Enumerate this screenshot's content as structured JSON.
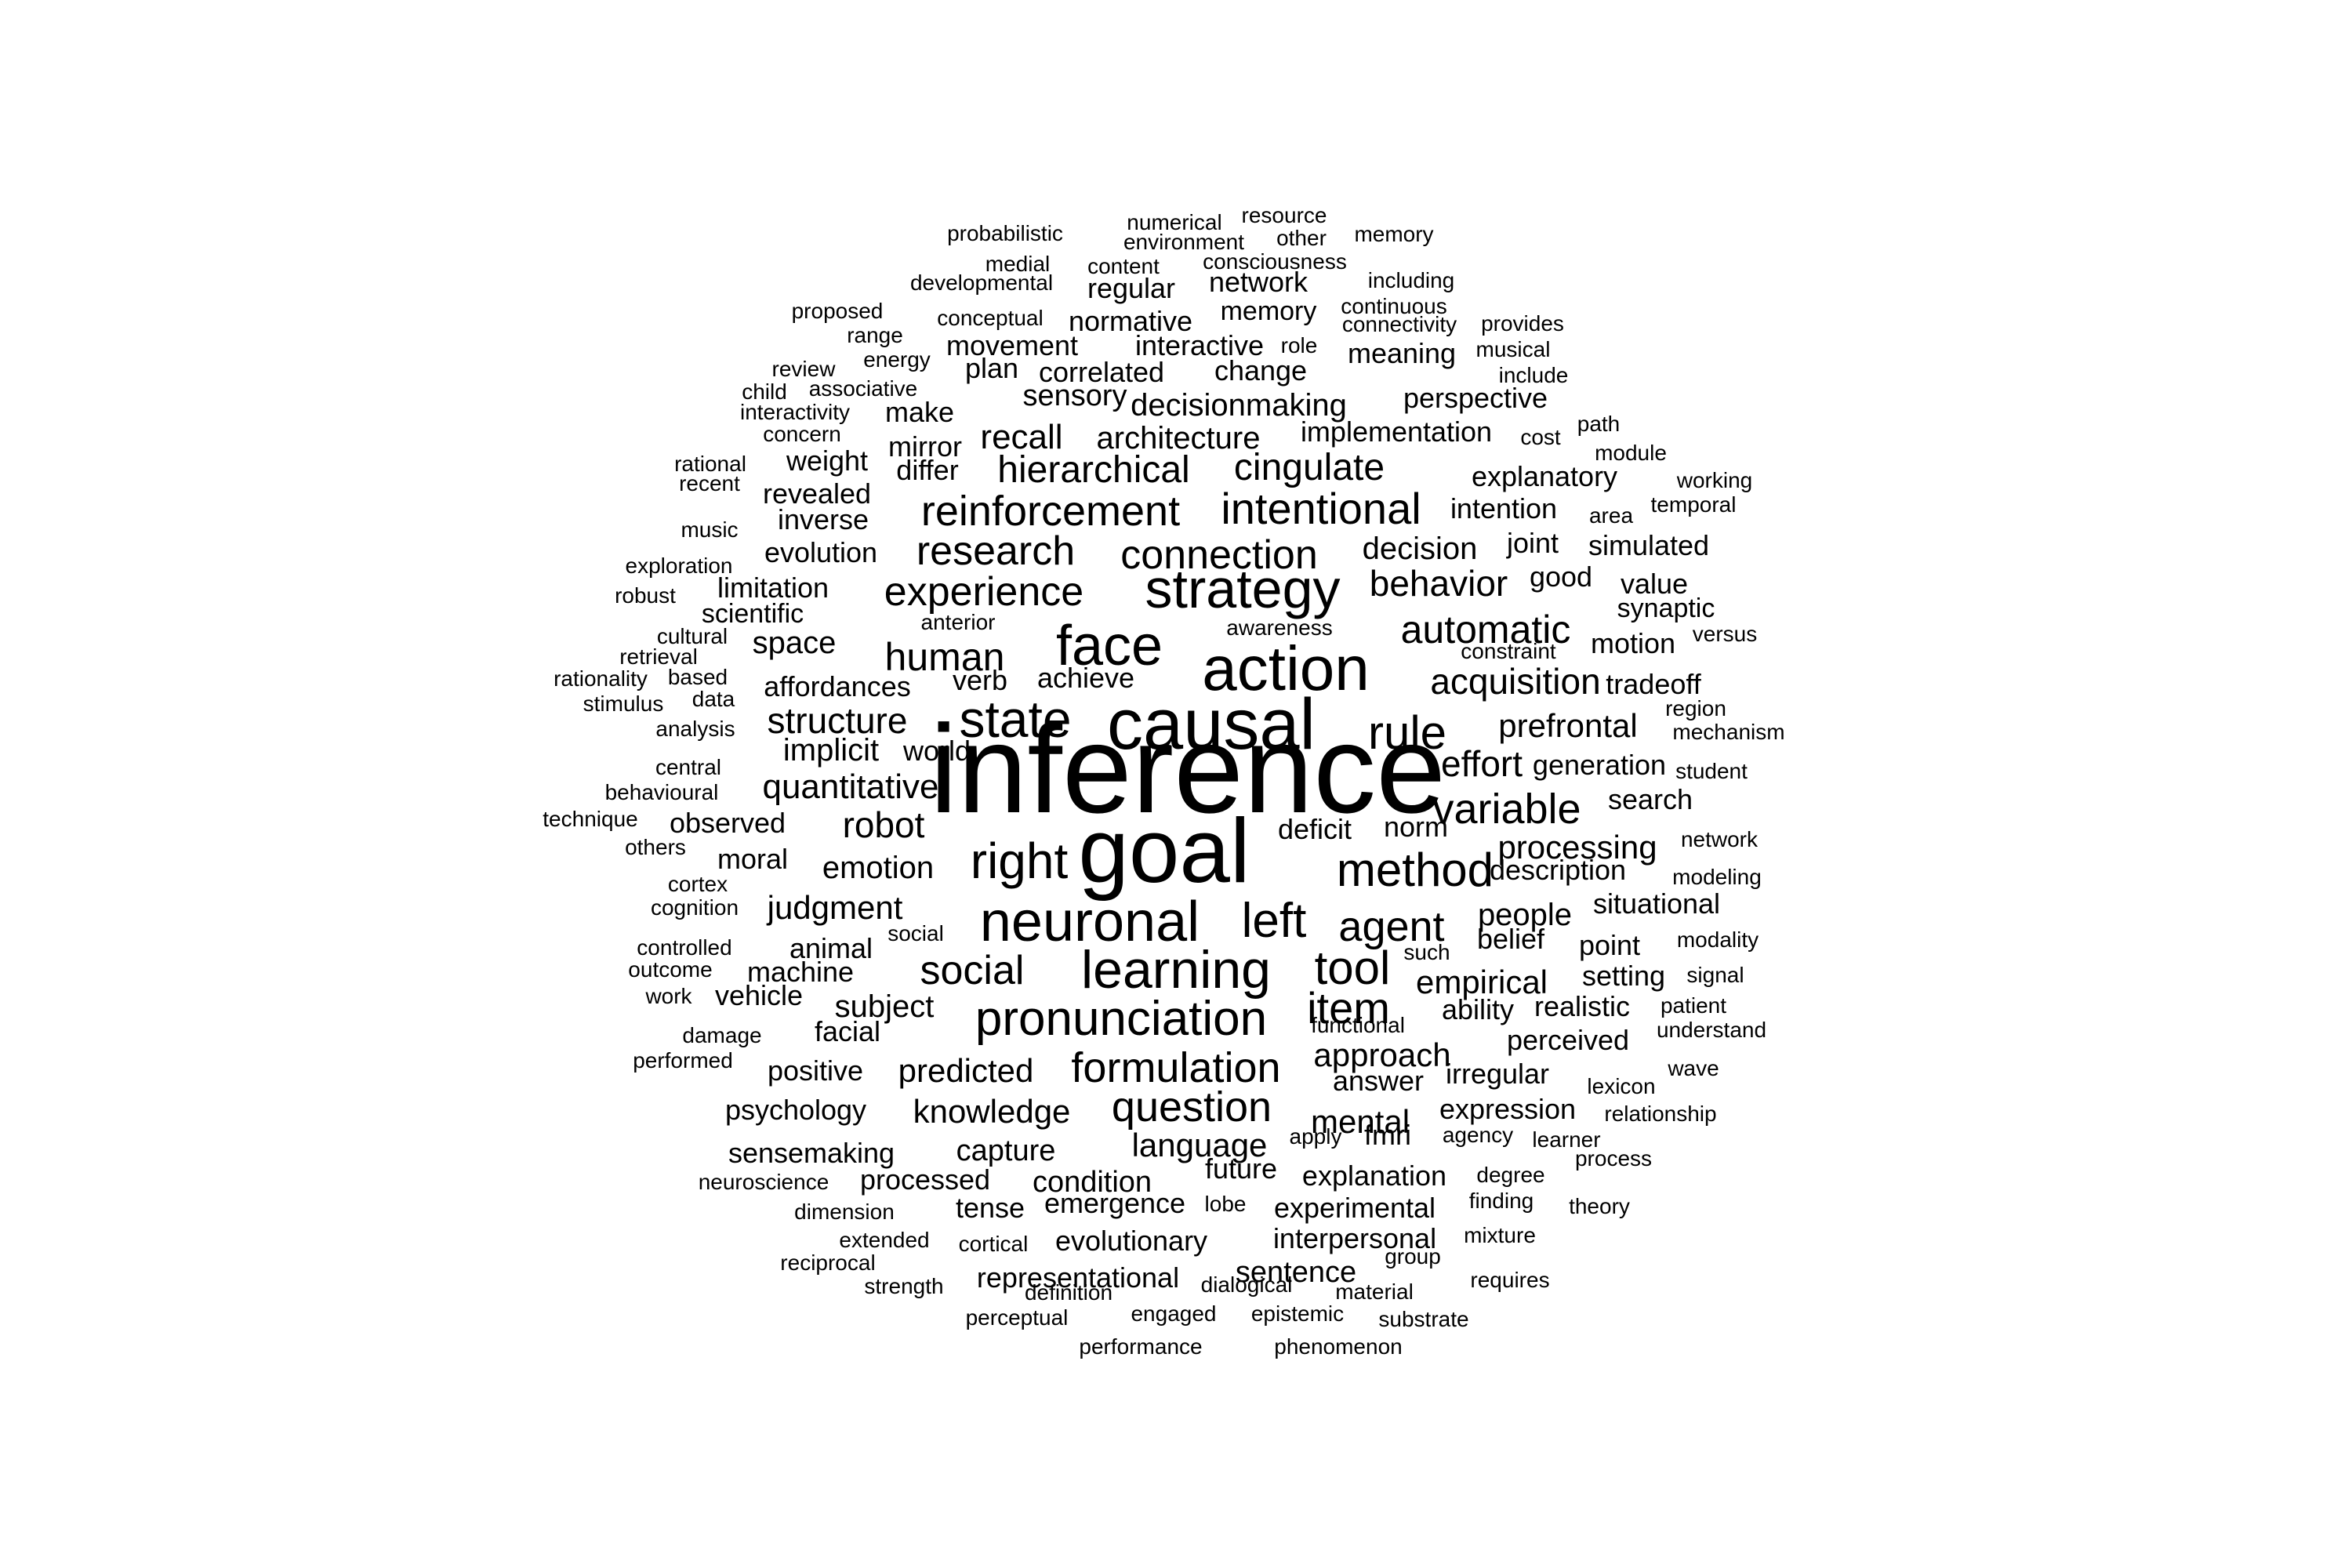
{
  "wordcloud": {
    "color": "#000000",
    "words": [
      "inference",
      "goal",
      "causal",
      "action",
      "neuronal",
      "face",
      "strategy",
      "learning",
      "pronunciation",
      "state",
      "method",
      "left",
      "right",
      "rule",
      "tool",
      "agent",
      "formulation",
      "reinforcement",
      "intentional",
      "question",
      "connection",
      "research",
      "experience",
      "item",
      "human",
      "social",
      "variable",
      "automatic",
      "behavior",
      "acquisition",
      "effort",
      "hierarchical",
      "cingulate",
      "quantitative",
      "prefrontal",
      "structure",
      "processing",
      "approach",
      "language",
      "empirical",
      "mental",
      "knowledge",
      "robot",
      "decisionmaking",
      "architecture",
      "predicted",
      "emotion",
      "judgment",
      "subject",
      "people",
      "recall",
      "implicit",
      "space",
      "decision",
      "explanation",
      "experimental",
      "evolutionary",
      "representational",
      "sentence",
      "interpersonal",
      "condition",
      "emergence",
      "capture",
      "sensemaking",
      "psychology",
      "positive",
      "facial",
      "vehicle",
      "machine",
      "animal",
      "moral",
      "observed",
      "affordances",
      "verb",
      "achieve",
      "evolution",
      "inverse",
      "revealed",
      "weight",
      "differ",
      "mirror",
      "make",
      "plan",
      "correlated",
      "change",
      "sensory",
      "meaning",
      "movement",
      "interactive",
      "normative",
      "memory",
      "network",
      "regular",
      "perspective",
      "implementation",
      "explanatory",
      "intention",
      "joint",
      "simulated",
      "good",
      "value",
      "synaptic",
      "motion",
      "tradeoff",
      "generation",
      "search",
      "deficit",
      "norm",
      "description",
      "situational",
      "belief",
      "point",
      "setting",
      "realistic",
      "ability",
      "perceived",
      "irregular",
      "answer",
      "expression",
      "fmri",
      "future",
      "tense",
      "processed",
      "limitation",
      "scientific",
      "world",
      "mental_skip",
      "probabilistic",
      "numerical",
      "resource",
      "environment",
      "other",
      "memory_small",
      "medial",
      "content",
      "consciousness",
      "developmental",
      "including",
      "continuous",
      "connectivity",
      "provides",
      "proposed",
      "conceptual",
      "range",
      "energy",
      "review",
      "musical",
      "role",
      "child",
      "associative",
      "include",
      "interactivity",
      "concern",
      "cost",
      "path",
      "module",
      "rational",
      "recent",
      "working",
      "temporal",
      "area",
      "music",
      "exploration",
      "robust",
      "anterior",
      "awareness",
      "cultural",
      "retrieval",
      "constraint",
      "versus",
      "rationality",
      "based",
      "stimulus",
      "data",
      "region",
      "mechanism",
      "analysis",
      "central",
      "behavioural",
      "student",
      "technique",
      "others",
      "network_small",
      "cortex",
      "modeling",
      "cognition",
      "social_small",
      "controlled",
      "such",
      "modality",
      "outcome",
      "work",
      "signal",
      "patient",
      "functional",
      "understand",
      "damage",
      "performed",
      "lexicon",
      "wave",
      "relationship",
      "agency",
      "apply",
      "learner",
      "degree",
      "process",
      "neuroscience",
      "dimension",
      "lobe",
      "finding",
      "theory",
      "extended",
      "cortical",
      "mixture",
      "reciprocal",
      "group",
      "strength",
      "definition",
      "dialogical",
      "material",
      "requires",
      "perceptual",
      "engaged",
      "epistemic",
      "substrate",
      "performance",
      "phenomenon"
    ],
    "labels": {
      "inference": "inference",
      "goal": "goal",
      "causal": "causal",
      "action": "action",
      "neuronal": "neuronal",
      "face": "face",
      "strategy": "strategy",
      "learning": "learning",
      "pronunciation": "pronunciation",
      "state": "state",
      "method": "method",
      "left": "left",
      "right": "right",
      "rule": "rule",
      "tool": "tool",
      "agent": "agent",
      "formulation": "formulation",
      "reinforcement": "reinforcement",
      "intentional": "intentional",
      "question": "question",
      "connection": "connection",
      "research": "research",
      "experience": "experience",
      "item": "item",
      "human": "human",
      "social": "social",
      "variable": "variable",
      "automatic": "automatic",
      "behavior": "behavior",
      "acquisition": "acquisition",
      "effort": "effort",
      "hierarchical": "hierarchical",
      "cingulate": "cingulate",
      "quantitative": "quantitative",
      "prefrontal": "prefrontal",
      "structure": "structure",
      "processing": "processing",
      "approach": "approach",
      "language": "language",
      "empirical": "empirical",
      "mental": "mental",
      "knowledge": "knowledge",
      "robot": "robot",
      "decisionmaking": "decisionmaking",
      "architecture": "architecture",
      "predicted": "predicted",
      "emotion": "emotion",
      "judgment": "judgment",
      "subject": "subject",
      "people": "people",
      "recall": "recall",
      "implicit": "implicit",
      "space": "space",
      "decision": "decision",
      "explanation": "explanation",
      "experimental": "experimental",
      "evolutionary": "evolutionary",
      "representational": "representational",
      "sentence": "sentence",
      "interpersonal": "interpersonal",
      "condition": "condition",
      "emergence": "emergence",
      "capture": "capture",
      "sensemaking": "sensemaking",
      "psychology": "psychology",
      "positive": "positive",
      "facial": "facial",
      "vehicle": "vehicle",
      "machine": "machine",
      "animal": "animal",
      "moral": "moral",
      "observed": "observed",
      "affordances": "affordances",
      "verb": "verb",
      "achieve": "achieve",
      "evolution": "evolution",
      "inverse": "inverse",
      "revealed": "revealed",
      "weight": "weight",
      "differ": "differ",
      "mirror": "mirror",
      "make": "make",
      "plan": "plan",
      "correlated": "correlated",
      "change": "change",
      "sensory": "sensory",
      "meaning": "meaning",
      "movement": "movement",
      "interactive": "interactive",
      "normative": "normative",
      "memory": "memory",
      "network": "network",
      "regular": "regular",
      "perspective": "perspective",
      "implementation": "implementation",
      "explanatory": "explanatory",
      "intention": "intention",
      "joint": "joint",
      "simulated": "simulated",
      "good": "good",
      "value": "value",
      "synaptic": "synaptic",
      "motion": "motion",
      "tradeoff": "tradeoff",
      "generation": "generation",
      "search": "search",
      "deficit": "deficit",
      "norm": "norm",
      "description": "description",
      "situational": "situational",
      "belief": "belief",
      "point": "point",
      "setting": "setting",
      "realistic": "realistic",
      "ability": "ability",
      "perceived": "perceived",
      "irregular": "irregular",
      "answer": "answer",
      "expression": "expression",
      "fmri": "fmri",
      "future": "future",
      "tense": "tense",
      "processed": "processed",
      "limitation": "limitation",
      "scientific": "scientific",
      "world": "world",
      "probabilistic": "probabilistic",
      "numerical": "numerical",
      "resource": "resource",
      "environment": "environment",
      "other": "other",
      "memory_small": "memory",
      "medial": "medial",
      "content": "content",
      "consciousness": "consciousness",
      "developmental": "developmental",
      "including": "including",
      "continuous": "continuous",
      "connectivity": "connectivity",
      "provides": "provides",
      "proposed": "proposed",
      "conceptual": "conceptual",
      "range": "range",
      "energy": "energy",
      "review": "review",
      "musical": "musical",
      "role": "role",
      "child": "child",
      "associative": "associative",
      "include": "include",
      "interactivity": "interactivity",
      "concern": "concern",
      "cost": "cost",
      "path": "path",
      "module": "module",
      "rational": "rational",
      "recent": "recent",
      "working": "working",
      "temporal": "temporal",
      "area": "area",
      "music": "music",
      "exploration": "exploration",
      "robust": "robust",
      "anterior": "anterior",
      "awareness": "awareness",
      "cultural": "cultural",
      "retrieval": "retrieval",
      "constraint": "constraint",
      "versus": "versus",
      "rationality": "rationality",
      "based": "based",
      "stimulus": "stimulus",
      "data": "data",
      "region": "region",
      "mechanism": "mechanism",
      "analysis": "analysis",
      "central": "central",
      "behavioural": "behavioural",
      "student": "student",
      "technique": "technique",
      "others": "others",
      "network_small": "network",
      "cortex": "cortex",
      "modeling": "modeling",
      "cognition": "cognition",
      "social_small": "social",
      "controlled": "controlled",
      "such": "such",
      "modality": "modality",
      "outcome": "outcome",
      "work": "work",
      "signal": "signal",
      "patient": "patient",
      "functional": "functional",
      "understand": "understand",
      "damage": "damage",
      "performed": "performed",
      "lexicon": "lexicon",
      "wave": "wave",
      "relationship": "relationship",
      "agency": "agency",
      "apply": "apply",
      "learner": "learner",
      "degree": "degree",
      "process": "process",
      "neuroscience": "neuroscience",
      "dimension": "dimension",
      "lobe": "lobe",
      "finding": "finding",
      "theory": "theory",
      "extended": "extended",
      "cortical": "cortical",
      "mixture": "mixture",
      "reciprocal": "reciprocal",
      "group": "group",
      "strength": "strength",
      "definition": "definition",
      "dialogical": "dialogical",
      "material": "material",
      "requires": "requires",
      "perceptual": "perceptual",
      "engaged": "engaged",
      "epistemic": "epistemic",
      "substrate": "substrate",
      "performance": "performance",
      "phenomenon": "phenomenon"
    }
  }
}
